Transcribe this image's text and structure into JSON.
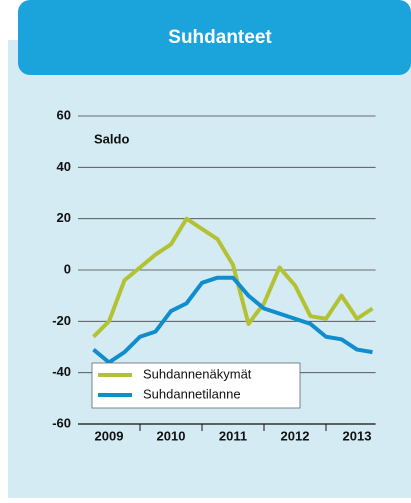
{
  "chart_data": {
    "type": "line",
    "title": "Suhdanteet",
    "ylabel": "Saldo",
    "x": [
      2009.25,
      2009.5,
      2009.75,
      2010,
      2010.25,
      2010.5,
      2010.75,
      2011,
      2011.25,
      2011.5,
      2011.75,
      2012,
      2012.25,
      2012.5,
      2012.75,
      2013,
      2013.25,
      2013.5,
      2013.75
    ],
    "series": [
      {
        "name": "Suhdannenäkymät",
        "color": "#b3c232",
        "values": [
          -26,
          -20,
          -4,
          1,
          6,
          10,
          20,
          16,
          12,
          2,
          -21,
          -13,
          1,
          -6,
          -18,
          -19,
          -10,
          -19,
          -15
        ]
      },
      {
        "name": "Suhdannetilanne",
        "color": "#108dcc",
        "values": [
          -31,
          -36,
          -32,
          -26,
          -24,
          -16,
          -13,
          -5,
          -3,
          -3,
          -10,
          -15,
          -17,
          -19,
          -21,
          -26,
          -27,
          -31,
          -32
        ]
      }
    ],
    "xlim": [
      2009,
      2013.8
    ],
    "xticks": [
      {
        "value": 2009.5,
        "label": "2009"
      },
      {
        "value": 2010.5,
        "label": "2010"
      },
      {
        "value": 2011.5,
        "label": "2011"
      },
      {
        "value": 2012.5,
        "label": "2012"
      },
      {
        "value": 2013.5,
        "label": "2013"
      }
    ],
    "ylim": [
      -60,
      60
    ],
    "yticks": [
      -60,
      -40,
      -20,
      0,
      20,
      40,
      60
    ],
    "grid": true,
    "legend": "lower left"
  }
}
